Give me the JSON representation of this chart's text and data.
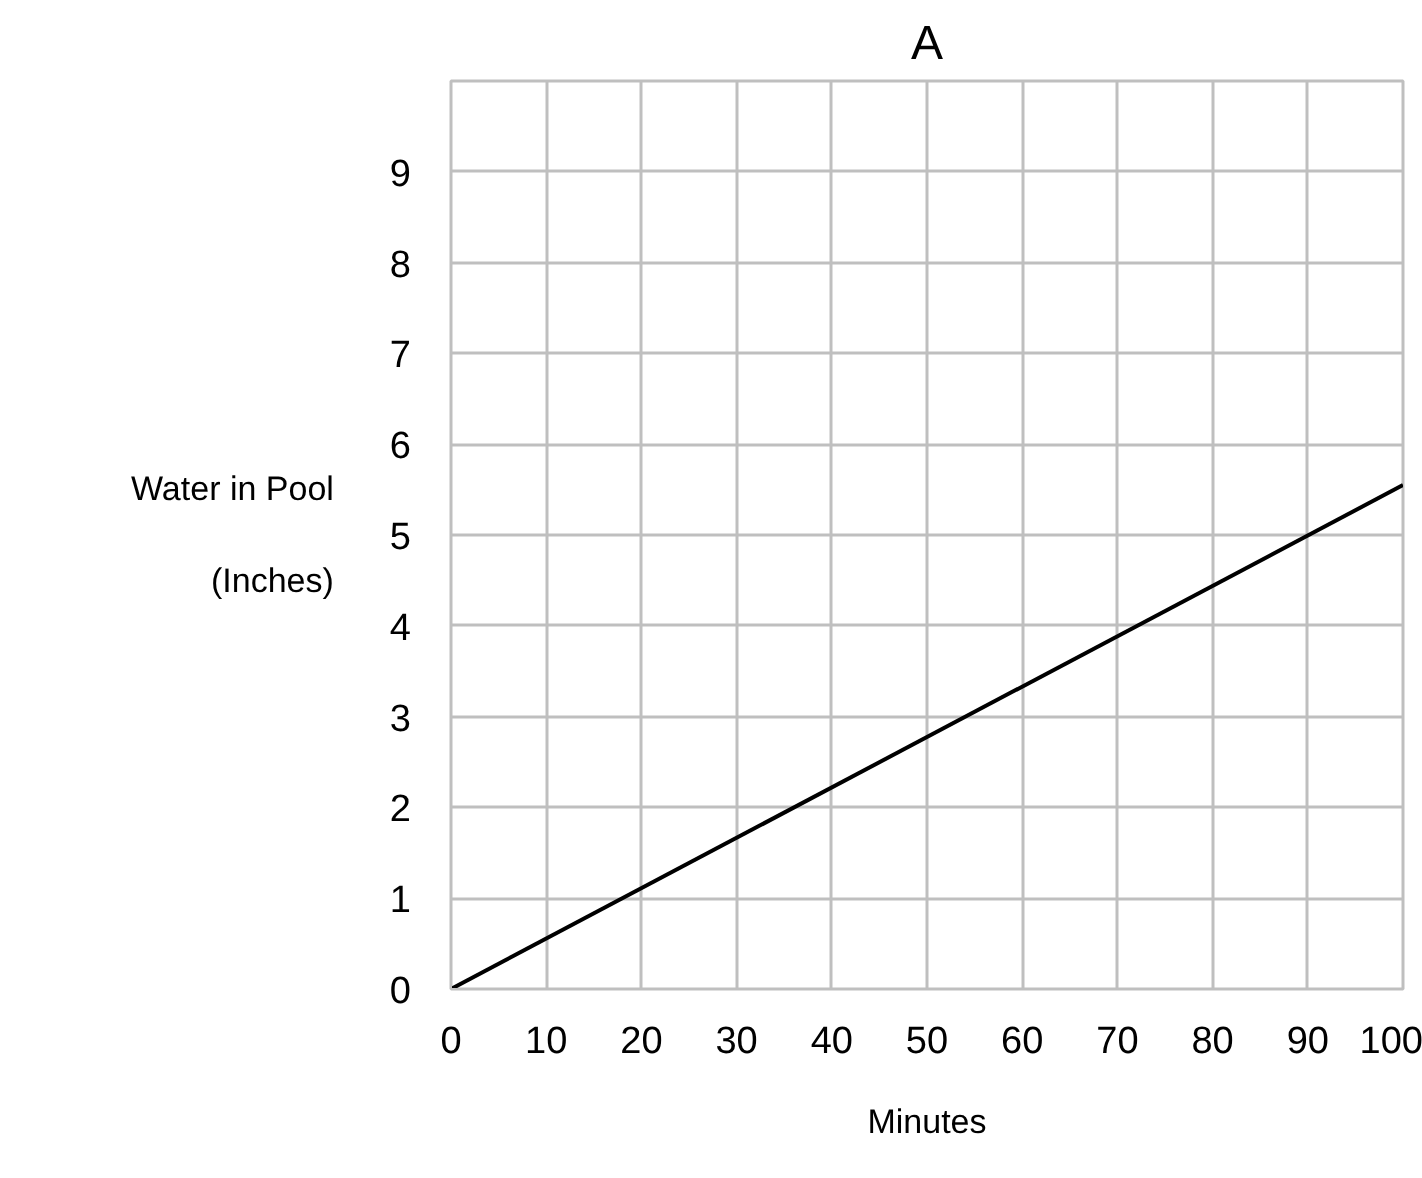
{
  "chart_data": {
    "type": "line",
    "title": "A",
    "xlabel": "Minutes",
    "ylabel": "Water in Pool\n(Inches)",
    "x": [
      0,
      100
    ],
    "series": [
      {
        "color": "#000000",
        "values": [
          0,
          5.55
        ]
      }
    ],
    "xlim": [
      0,
      100
    ],
    "xticks": [
      0,
      10,
      20,
      30,
      40,
      50,
      60,
      70,
      80,
      90,
      100
    ],
    "ylim": [
      0,
      10
    ],
    "yticks": [
      0,
      1,
      2,
      3,
      4,
      5,
      6,
      7,
      8,
      9,
      {
        "value": 10,
        "label": null
      }
    ],
    "grid": true,
    "marker": "none",
    "line_style": "solid"
  }
}
